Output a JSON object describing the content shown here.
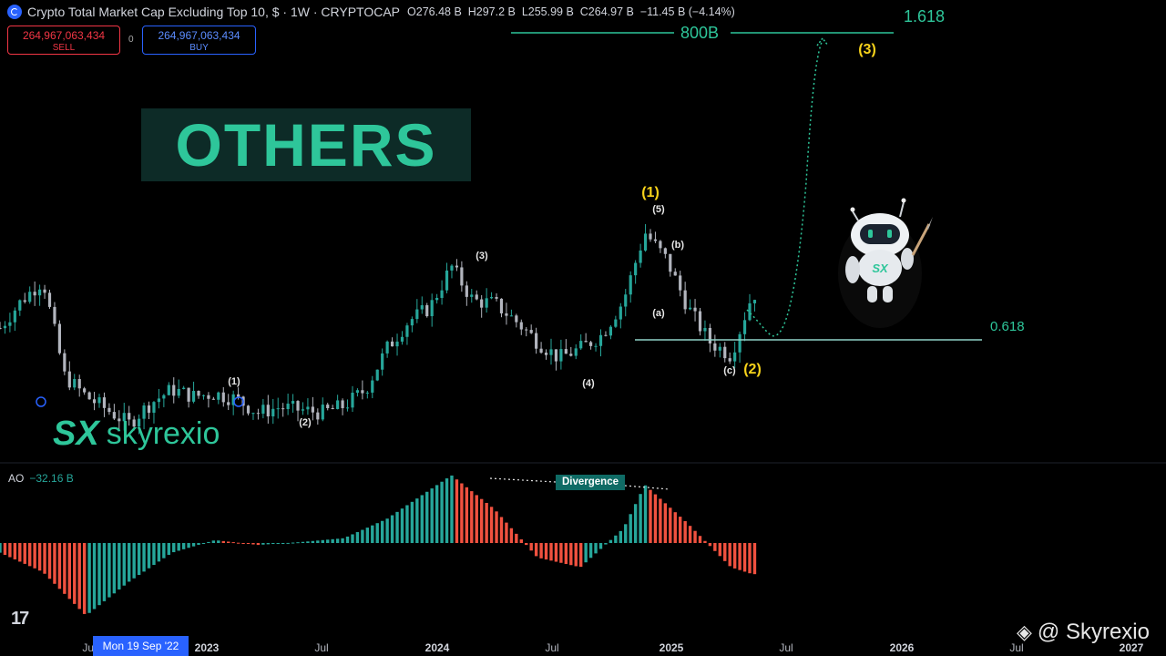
{
  "header": {
    "title": "Crypto Total Market Cap Excluding Top 10, $ · 1W · CRYPTOCAP",
    "open": "O276.48 B",
    "high": "H297.2 B",
    "low": "L255.99 B",
    "close": "C264.97 B",
    "change": "−11.45 B (−4.14%)"
  },
  "trade": {
    "sell_price": "264,967,063,434",
    "sell_label": "SELL",
    "spread": "0",
    "buy_price": "264,967,063,434",
    "buy_label": "BUY"
  },
  "overlay": {
    "others_title": "OTHERS",
    "brand_mark": "SX",
    "brand_name": "skyrexio",
    "watermark": "@ Skyrexio"
  },
  "fib": {
    "top_ratio": "1.618",
    "top_target": "800B",
    "support_ratio": "0.618"
  },
  "waves": {
    "minor_1": "(1)",
    "minor_2": "(2)",
    "minor_3": "(3)",
    "minor_4": "(4)",
    "minor_5": "(5)",
    "corr_a": "(a)",
    "corr_b": "(b)",
    "corr_c": "(c)",
    "major_1": "(1)",
    "major_2": "(2)",
    "major_3": "(3)"
  },
  "indicator": {
    "name": "AO",
    "value": "−32.16 B",
    "divergence_label": "Divergence"
  },
  "x_axis": {
    "ticks": [
      "Jul",
      "2023",
      "Jul",
      "2024",
      "Jul",
      "2025",
      "Jul",
      "2026",
      "Jul",
      "2027"
    ],
    "crosshair_date": "Mon 19 Sep '22"
  },
  "colors": {
    "up": "#26a69a",
    "down_candle": "#b2b5be",
    "ao_down": "#f0513f",
    "accent": "#2ec69a",
    "wave_major": "#f7d21a"
  },
  "chart_data": {
    "type": "candlestick",
    "title": "Crypto Total Market Cap Excluding Top 10",
    "series": [
      {
        "name": "price_path_approx",
        "unit": "B USD",
        "points": [
          [
            "2022-06",
            220
          ],
          [
            "2022-07",
            240
          ],
          [
            "2022-08",
            255
          ],
          [
            "2022-09",
            185
          ],
          [
            "2022-10",
            170
          ],
          [
            "2022-11",
            160
          ],
          [
            "2022-12",
            150
          ],
          [
            "2023-01",
            165
          ],
          [
            "2023-02",
            175
          ],
          [
            "2023-03",
            170
          ],
          [
            "2023-04",
            172
          ],
          [
            "2023-05",
            168
          ],
          [
            "2023-06",
            158
          ],
          [
            "2023-07",
            162
          ],
          [
            "2023-08",
            160
          ],
          [
            "2023-09",
            158
          ],
          [
            "2023-10",
            163
          ],
          [
            "2023-11",
            175
          ],
          [
            "2023-12",
            205
          ],
          [
            "2024-01",
            225
          ],
          [
            "2024-02",
            235
          ],
          [
            "2024-03",
            265
          ],
          [
            "2024-04",
            240
          ],
          [
            "2024-05",
            238
          ],
          [
            "2024-06",
            225
          ],
          [
            "2024-07",
            210
          ],
          [
            "2024-08",
            198
          ],
          [
            "2024-09",
            205
          ],
          [
            "2024-10",
            215
          ],
          [
            "2024-11",
            240
          ],
          [
            "2024-12",
            290
          ],
          [
            "2025-01",
            270
          ],
          [
            "2025-02",
            235
          ],
          [
            "2025-03",
            210
          ],
          [
            "2025-04",
            200
          ],
          [
            "2025-05",
            245
          ]
        ]
      },
      {
        "name": "AO",
        "unit": "B USD",
        "points": [
          [
            "2022-06",
            -10
          ],
          [
            "2022-08",
            -30
          ],
          [
            "2022-10",
            -75
          ],
          [
            "2022-12",
            -40
          ],
          [
            "2023-02",
            -10
          ],
          [
            "2023-04",
            3
          ],
          [
            "2023-06",
            -2
          ],
          [
            "2023-08",
            1
          ],
          [
            "2023-10",
            5
          ],
          [
            "2023-12",
            25
          ],
          [
            "2024-02",
            55
          ],
          [
            "2024-03",
            70
          ],
          [
            "2024-05",
            35
          ],
          [
            "2024-07",
            -15
          ],
          [
            "2024-09",
            -25
          ],
          [
            "2024-11",
            15
          ],
          [
            "2024-12",
            60
          ],
          [
            "2025-02",
            20
          ],
          [
            "2025-04",
            -25
          ],
          [
            "2025-05",
            -32.16
          ]
        ]
      }
    ],
    "levels": [
      {
        "label": "0.618",
        "kind": "fib_support"
      },
      {
        "label": "800B",
        "ratio": "1.618",
        "kind": "fib_target"
      }
    ],
    "projection": "wave (3) target",
    "y_axis": "not shown"
  }
}
